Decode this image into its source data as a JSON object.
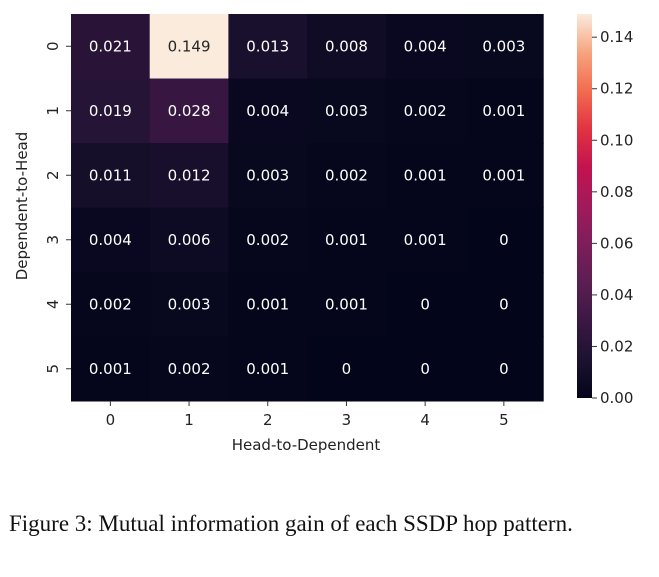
{
  "chart_data": {
    "type": "heatmap",
    "xlabel": "Head-to-Dependent",
    "ylabel": "Dependent-to-Head",
    "x_categories": [
      "0",
      "1",
      "2",
      "3",
      "4",
      "5"
    ],
    "y_categories": [
      "0",
      "1",
      "2",
      "3",
      "4",
      "5"
    ],
    "values": [
      [
        0.021,
        0.149,
        0.013,
        0.008,
        0.004,
        0.003
      ],
      [
        0.019,
        0.028,
        0.004,
        0.003,
        0.002,
        0.001
      ],
      [
        0.011,
        0.012,
        0.003,
        0.002,
        0.001,
        0.001
      ],
      [
        0.004,
        0.006,
        0.002,
        0.001,
        0.001,
        0
      ],
      [
        0.002,
        0.003,
        0.001,
        0.001,
        0,
        0
      ],
      [
        0.001,
        0.002,
        0.001,
        0,
        0,
        0
      ]
    ],
    "cell_labels": [
      [
        "0.021",
        "0.149",
        "0.013",
        "0.008",
        "0.004",
        "0.003"
      ],
      [
        "0.019",
        "0.028",
        "0.004",
        "0.003",
        "0.002",
        "0.001"
      ],
      [
        "0.011",
        "0.012",
        "0.003",
        "0.002",
        "0.001",
        "0.001"
      ],
      [
        "0.004",
        "0.006",
        "0.002",
        "0.001",
        "0.001",
        "0"
      ],
      [
        "0.002",
        "0.003",
        "0.001",
        "0.001",
        "0",
        "0"
      ],
      [
        "0.001",
        "0.002",
        "0.001",
        "0",
        "0",
        "0"
      ]
    ],
    "colormap": "rocket",
    "colorbar": {
      "range": [
        0,
        0.149
      ],
      "ticks": [
        0.0,
        0.02,
        0.04,
        0.06,
        0.08,
        0.1,
        0.12,
        0.14
      ],
      "tick_labels": [
        "0.00",
        "0.02",
        "0.04",
        "0.06",
        "0.08",
        "0.10",
        "0.12",
        "0.14"
      ]
    }
  },
  "caption": "Figure 3: Mutual information gain of each SSDP hop pattern."
}
